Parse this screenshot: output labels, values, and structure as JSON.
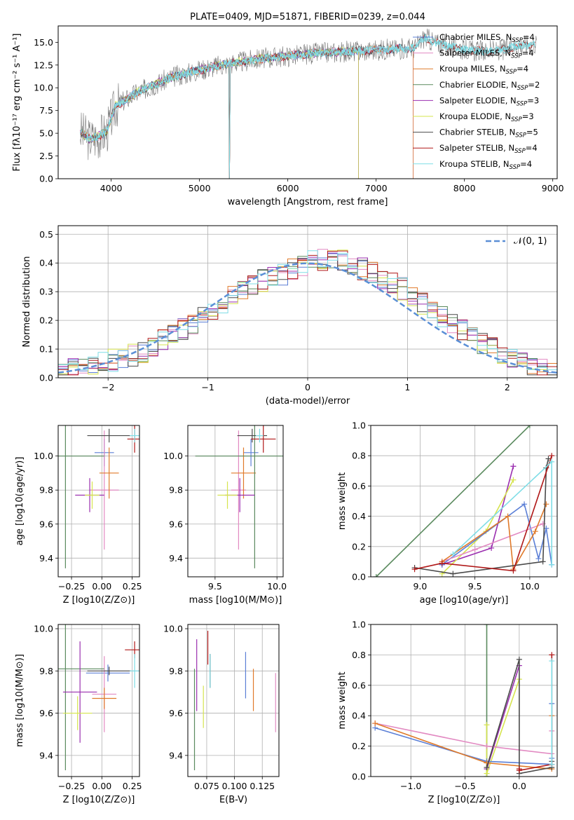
{
  "colors": {
    "chabrier_miles": "#5b7fd6",
    "salpeter_miles": "#e28ac2",
    "kroupa_miles": "#e07a2a",
    "chabrier_elodie": "#5a8a5e",
    "salpeter_elodie": "#9b2fb0",
    "kroupa_elodie": "#d6e44e",
    "chabrier_stelib": "#4a4a4a",
    "salpeter_stelib": "#b01818",
    "kroupa_stelib": "#7fdde6",
    "normal": "#5b8fd6"
  },
  "chart_data": [
    {
      "type": "line",
      "title": "PLATE=0409, MJD=51871, FIBERID=0239, z=0.044",
      "xlabel": "wavelength [Angstrom, rest frame]",
      "ylabel": "Flux [f_λ10^-17 erg cm^-2 s^-1 A^-1]",
      "xlim": [
        3400,
        9050
      ],
      "ylim": [
        0,
        16.8
      ],
      "xticks": [
        "4000",
        "5000",
        "6000",
        "7000",
        "8000",
        "9000"
      ],
      "yticks": [
        "0.0",
        "2.5",
        "5.0",
        "7.5",
        "10.0",
        "12.5",
        "15.0"
      ],
      "grid": false,
      "legend": "top-right",
      "data_x": [
        3650,
        3750,
        3850,
        3950,
        4050,
        4150,
        4300,
        4500,
        4700,
        4900,
        5100,
        5300,
        5500,
        5700,
        5900,
        6100,
        6300,
        6500,
        6700,
        6900,
        7100,
        7300,
        7450,
        7550,
        7650,
        7800,
        8000,
        8200,
        8400,
        8600,
        8800
      ],
      "data_y": [
        5.2,
        4.4,
        4.6,
        5.2,
        8.0,
        8.6,
        9.5,
        10.4,
        11.2,
        11.7,
        12.2,
        12.6,
        12.9,
        13.2,
        13.4,
        13.6,
        13.8,
        13.9,
        14.0,
        14.1,
        14.2,
        14.3,
        14.4,
        15.6,
        15.0,
        14.6,
        14.2,
        14.0,
        14.1,
        14.6,
        14.9
      ],
      "series": [
        {
          "name": "Chabrier MILES, N_SSP=4",
          "color_key": "chabrier_miles",
          "x_end": 7420
        },
        {
          "name": "Salpeter MILES, N_SSP=4",
          "color_key": "salpeter_miles",
          "x_end": 7420
        },
        {
          "name": "Kroupa MILES, N_SSP=4",
          "color_key": "kroupa_miles",
          "x_end": 7420
        },
        {
          "name": "Chabrier ELODIE, N_SSP=2",
          "color_key": "chabrier_elodie",
          "x_end": 6800
        },
        {
          "name": "Salpeter ELODIE, N_SSP=3",
          "color_key": "salpeter_elodie",
          "x_end": 6800
        },
        {
          "name": "Kroupa ELODIE, N_SSP=3",
          "color_key": "kroupa_elodie",
          "x_end": 6800
        },
        {
          "name": "Chabrier STELIB, N_SSP=5",
          "color_key": "chabrier_stelib",
          "x_end": 8800
        },
        {
          "name": "Salpeter STELIB, N_SSP=4",
          "color_key": "salpeter_stelib",
          "x_end": 8800
        },
        {
          "name": "Kroupa STELIB, N_SSP=4",
          "color_key": "kroupa_stelib",
          "x_end": 8800
        }
      ]
    },
    {
      "type": "line",
      "xlabel": "(data-model)/error",
      "ylabel": "Normed distribution",
      "xlim": [
        -2.5,
        2.5
      ],
      "ylim": [
        0,
        0.53
      ],
      "xticks": [
        "−2",
        "−1",
        "0",
        "1",
        "2"
      ],
      "yticks": [
        "0.0",
        "0.1",
        "0.2",
        "0.3",
        "0.4",
        "0.5"
      ],
      "grid": true,
      "legend": "top-right",
      "legend_label": "𝒩(0, 1)",
      "bin_width": 0.1,
      "bin_start": -2.5,
      "histogram": [
        0.02,
        0.03,
        0.04,
        0.05,
        0.05,
        0.06,
        0.06,
        0.08,
        0.09,
        0.11,
        0.13,
        0.15,
        0.17,
        0.19,
        0.21,
        0.24,
        0.26,
        0.28,
        0.31,
        0.33,
        0.34,
        0.35,
        0.36,
        0.38,
        0.39,
        0.41,
        0.41,
        0.42,
        0.41,
        0.4,
        0.38,
        0.37,
        0.35,
        0.33,
        0.31,
        0.29,
        0.26,
        0.24,
        0.21,
        0.19,
        0.17,
        0.14,
        0.12,
        0.1,
        0.08,
        0.06,
        0.05,
        0.04,
        0.03,
        0.02
      ]
    },
    {
      "type": "scatter",
      "xlabel": "Z [log10(Z/Z⊙)]",
      "ylabel": "age  [log10(age/yr)]",
      "xlim": [
        -0.36,
        0.31
      ],
      "ylim": [
        9.29,
        10.18
      ],
      "xticks": [
        "−0.25",
        "0.00",
        "0.25"
      ],
      "yticks": [
        "9.4",
        "9.6",
        "9.8",
        "10.0"
      ],
      "grid": true,
      "points": [
        {
          "k": "chabrier_miles",
          "x": 0.02,
          "y": 10.02,
          "ex": 0.08,
          "ey": 0.08
        },
        {
          "k": "salpeter_miles",
          "x": 0.02,
          "y": 9.8,
          "ex": 0.12,
          "ey": 0.35
        },
        {
          "k": "kroupa_miles",
          "x": 0.06,
          "y": 9.9,
          "ex": 0.08,
          "ey": 0.15
        },
        {
          "k": "chabrier_elodie",
          "x": -0.3,
          "y": 10.0,
          "ex": 0.32,
          "ey": 0.66
        },
        {
          "k": "salpeter_elodie",
          "x": -0.1,
          "y": 9.77,
          "ex": 0.12,
          "ey": 0.1
        },
        {
          "k": "kroupa_elodie",
          "x": -0.08,
          "y": 9.77,
          "ex": 0.06,
          "ey": 0.08
        },
        {
          "k": "chabrier_stelib",
          "x": 0.06,
          "y": 10.12,
          "ex": 0.18,
          "ey": 0.04
        },
        {
          "k": "salpeter_stelib",
          "x": 0.27,
          "y": 10.1,
          "ex": 0.06,
          "ey": 0.08
        },
        {
          "k": "kroupa_stelib",
          "x": 0.27,
          "y": 10.12,
          "ex": 0.04,
          "ey": 0.04
        }
      ]
    },
    {
      "type": "scatter",
      "xlabel": "mass [log10(M/M⊙)]",
      "xlim": [
        9.28,
        10.05
      ],
      "ylim": [
        9.29,
        10.18
      ],
      "xticks": [
        "9.5",
        "10.0"
      ],
      "yticks": [
        "9.4",
        "9.6",
        "9.8",
        "10.0"
      ],
      "grid": true,
      "points": [
        {
          "k": "chabrier_miles",
          "x": 9.79,
          "y": 10.02,
          "ex": 0.06,
          "ey": 0.08
        },
        {
          "k": "salpeter_miles",
          "x": 9.69,
          "y": 9.8,
          "ex": 0.06,
          "ey": 0.35
        },
        {
          "k": "kroupa_miles",
          "x": 9.73,
          "y": 9.9,
          "ex": 0.1,
          "ey": 0.15
        },
        {
          "k": "chabrier_elodie",
          "x": 9.82,
          "y": 10.0,
          "ex": 0.48,
          "ey": 0.66
        },
        {
          "k": "salpeter_elodie",
          "x": 9.7,
          "y": 9.77,
          "ex": 0.12,
          "ey": 0.1
        },
        {
          "k": "kroupa_elodie",
          "x": 9.6,
          "y": 9.77,
          "ex": 0.08,
          "ey": 0.08
        },
        {
          "k": "chabrier_stelib",
          "x": 9.8,
          "y": 10.12,
          "ex": 0.12,
          "ey": 0.04
        },
        {
          "k": "salpeter_stelib",
          "x": 9.89,
          "y": 10.1,
          "ex": 0.1,
          "ey": 0.08
        },
        {
          "k": "kroupa_stelib",
          "x": 9.86,
          "y": 10.12,
          "ex": 0.03,
          "ey": 0.04
        }
      ]
    },
    {
      "type": "line",
      "xlabel": "age  [log10(age/yr)]",
      "ylabel": "mass weight",
      "xlim": [
        8.55,
        10.25
      ],
      "ylim": [
        0,
        1.0
      ],
      "xticks": [
        "9.0",
        "9.5",
        "10.0"
      ],
      "yticks": [
        "0.0",
        "0.2",
        "0.4",
        "0.6",
        "0.8",
        "1.0"
      ],
      "grid": true,
      "series": [
        {
          "k": "chabrier_elodie",
          "x": [
            8.6,
            10.0
          ],
          "y": [
            0.0,
            1.0
          ]
        },
        {
          "k": "salpeter_elodie",
          "x": [
            9.2,
            9.65,
            9.85,
            9.85
          ],
          "y": [
            0.08,
            0.19,
            0.73,
            0.73
          ]
        },
        {
          "k": "kroupa_elodie",
          "x": [
            9.2,
            9.6,
            9.85
          ],
          "y": [
            0.02,
            0.3,
            0.64
          ]
        },
        {
          "k": "chabrier_miles",
          "x": [
            9.2,
            9.95,
            10.08,
            10.15,
            10.2
          ],
          "y": [
            0.08,
            0.48,
            0.12,
            0.32,
            0.08
          ]
        },
        {
          "k": "salpeter_miles",
          "x": [
            9.2,
            9.5,
            10.12
          ],
          "y": [
            0.1,
            0.18,
            0.35
          ]
        },
        {
          "k": "kroupa_miles",
          "x": [
            9.2,
            9.8,
            9.85,
            10.05,
            10.15
          ],
          "y": [
            0.1,
            0.4,
            0.05,
            0.3,
            0.48
          ]
        },
        {
          "k": "chabrier_stelib",
          "x": [
            8.95,
            9.3,
            10.12,
            10.15,
            10.17
          ],
          "y": [
            0.06,
            0.02,
            0.1,
            0.72,
            0.78
          ]
        },
        {
          "k": "salpeter_stelib",
          "x": [
            8.95,
            9.2,
            9.85,
            10.2
          ],
          "y": [
            0.05,
            0.09,
            0.04,
            0.8
          ]
        },
        {
          "k": "kroupa_stelib",
          "x": [
            9.3,
            10.2,
            10.2
          ],
          "y": [
            0.15,
            0.76,
            0.08
          ]
        }
      ]
    },
    {
      "type": "scatter",
      "xlabel": "Z [log10(Z/Z⊙)]",
      "ylabel": "mass [log10(M/M⊙)]",
      "xlim": [
        -0.36,
        0.31
      ],
      "ylim": [
        9.3,
        10.02
      ],
      "xticks": [
        "−0.25",
        "0.00",
        "0.25"
      ],
      "yticks": [
        "9.4",
        "9.6",
        "9.8",
        "10.0"
      ],
      "grid": true,
      "points": [
        {
          "k": "chabrier_miles",
          "x": 0.05,
          "y": 9.79,
          "ex": 0.18,
          "ey": 0.04
        },
        {
          "k": "salpeter_miles",
          "x": 0.02,
          "y": 9.69,
          "ex": 0.1,
          "ey": 0.18
        },
        {
          "k": "kroupa_miles",
          "x": 0.02,
          "y": 9.67,
          "ex": 0.1,
          "ey": 0.05
        },
        {
          "k": "chabrier_elodie",
          "x": -0.3,
          "y": 9.81,
          "ex": 0.32,
          "ey": 0.48
        },
        {
          "k": "salpeter_elodie",
          "x": -0.18,
          "y": 9.7,
          "ex": 0.14,
          "ey": 0.24
        },
        {
          "k": "kroupa_elodie",
          "x": -0.2,
          "y": 9.6,
          "ex": 0.12,
          "ey": 0.08
        },
        {
          "k": "chabrier_stelib",
          "x": 0.06,
          "y": 9.8,
          "ex": 0.18,
          "ey": 0.02
        },
        {
          "k": "salpeter_stelib",
          "x": 0.27,
          "y": 9.9,
          "ex": 0.08,
          "ey": 0.04
        },
        {
          "k": "kroupa_stelib",
          "x": 0.27,
          "y": 9.8,
          "ex": 0.04,
          "ey": 0.08
        }
      ]
    },
    {
      "type": "scatter",
      "xlabel": "E(B-V)",
      "xlim": [
        0.058,
        0.14
      ],
      "ylim": [
        9.3,
        10.02
      ],
      "xticks": [
        "0.075",
        "0.100",
        "0.125"
      ],
      "yticks": [
        "9.4",
        "9.6",
        "9.8",
        "10.0"
      ],
      "grid": true,
      "points": [
        {
          "k": "chabrier_miles",
          "x": 0.11,
          "y": 9.78,
          "ex": 0,
          "ey": 0.11
        },
        {
          "k": "salpeter_miles",
          "x": 0.137,
          "y": 9.65,
          "ex": 0,
          "ey": 0.14
        },
        {
          "k": "kroupa_miles",
          "x": 0.117,
          "y": 9.71,
          "ex": 0,
          "ey": 0.1
        },
        {
          "k": "chabrier_elodie",
          "x": 0.064,
          "y": 9.57,
          "ex": 0,
          "ey": 0.24
        },
        {
          "k": "salpeter_elodie",
          "x": 0.066,
          "y": 9.78,
          "ex": 0,
          "ey": 0.17
        },
        {
          "k": "kroupa_elodie",
          "x": 0.072,
          "y": 9.63,
          "ex": 0,
          "ey": 0.1
        },
        {
          "k": "chabrier_stelib",
          "x": 0.078,
          "y": 9.8,
          "ex": 0,
          "ey": 0.08
        },
        {
          "k": "salpeter_stelib",
          "x": 0.076,
          "y": 9.91,
          "ex": 0,
          "ey": 0.08
        },
        {
          "k": "kroupa_stelib",
          "x": 0.078,
          "y": 9.8,
          "ex": 0,
          "ey": 0.08
        }
      ]
    },
    {
      "type": "line",
      "xlabel": "Z [log10(Z/Z⊙)]",
      "ylabel": "mass weight",
      "xlim": [
        -1.37,
        0.35
      ],
      "ylim": [
        0,
        1.0
      ],
      "xticks": [
        "−1.0",
        "−0.5",
        "0.0"
      ],
      "yticks": [
        "0.0",
        "0.2",
        "0.4",
        "0.6",
        "0.8",
        "1.0"
      ],
      "grid": true,
      "series": [
        {
          "k": "chabrier_elodie",
          "x": [
            -0.3,
            -0.3
          ],
          "y": [
            0.0,
            1.0
          ]
        },
        {
          "k": "salpeter_elodie",
          "x": [
            -0.3,
            0.0
          ],
          "y": [
            0.05,
            0.73
          ]
        },
        {
          "k": "kroupa_elodie",
          "x": [
            -0.3,
            -0.3,
            0.0
          ],
          "y": [
            0.34,
            0.02,
            0.64
          ]
        },
        {
          "k": "chabrier_miles",
          "x": [
            -1.33,
            -0.3,
            0.3,
            0.3,
            0.3
          ],
          "y": [
            0.32,
            0.1,
            0.08,
            0.48,
            0.12
          ]
        },
        {
          "k": "salpeter_miles",
          "x": [
            -1.33,
            -0.3,
            0.3,
            0.3
          ],
          "y": [
            0.35,
            0.2,
            0.15,
            0.3
          ]
        },
        {
          "k": "kroupa_miles",
          "x": [
            -1.33,
            -0.3,
            0.3,
            0.3
          ],
          "y": [
            0.35,
            0.09,
            0.05,
            0.4
          ]
        },
        {
          "k": "chabrier_stelib",
          "x": [
            -0.3,
            0.0,
            0.0,
            0.3,
            0.3
          ],
          "y": [
            0.06,
            0.77,
            0.02,
            0.06,
            0.1
          ]
        },
        {
          "k": "salpeter_stelib",
          "x": [
            0.0,
            0.0,
            0.3,
            0.3
          ],
          "y": [
            0.05,
            0.04,
            0.08,
            0.8
          ]
        },
        {
          "k": "kroupa_stelib",
          "x": [
            0.3,
            0.3
          ],
          "y": [
            0.76,
            0.08
          ]
        }
      ]
    }
  ]
}
